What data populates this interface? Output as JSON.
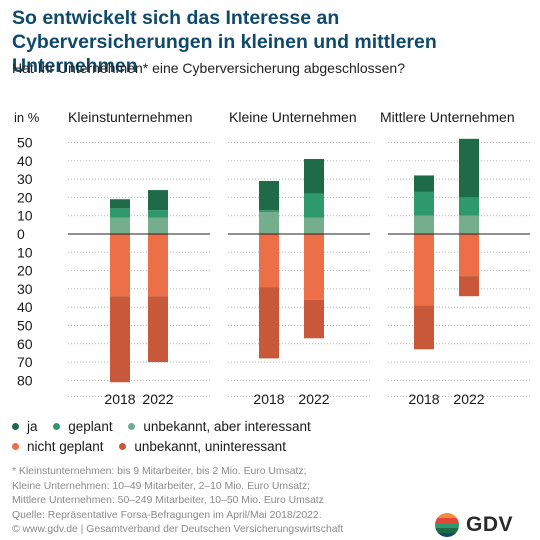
{
  "header": {
    "title": "So entwickelt sich das Interesse an Cyberversicherungen in kleinen und mittleren Unternehmen",
    "subtitle": "Hat Ihr Unternehmen* eine Cyberversicherung abgeschlossen?"
  },
  "chart_data": {
    "type": "bar",
    "stacked": "diverging",
    "unit_label": "in %",
    "y_ticks_above": [
      "50",
      "40",
      "30",
      "20",
      "10",
      "0"
    ],
    "y_ticks_below": [
      "10",
      "20",
      "30",
      "40",
      "50",
      "60",
      "70",
      "80"
    ],
    "ylim": [
      -80,
      50
    ],
    "grid": true,
    "legend_position": "bottom-left",
    "categories": [
      "2018",
      "2022"
    ],
    "colors": {
      "ja": "#1f6b47",
      "geplant": "#2e9a6c",
      "unbekannt_interessant": "#74ae8d",
      "nicht_geplant": "#ed6f48",
      "unbekannt_uninteressant": "#c9583a"
    },
    "groups": [
      {
        "name": "Kleinstunternehmen",
        "years": [
          {
            "year": "2018",
            "ja": 5,
            "geplant": 5,
            "unbekannt_interessant": 9,
            "nicht_geplant": 34,
            "unbekannt_uninteressant": 47
          },
          {
            "year": "2022",
            "ja": 11,
            "geplant": 4,
            "unbekannt_interessant": 9,
            "nicht_geplant": 34,
            "unbekannt_uninteressant": 36
          }
        ]
      },
      {
        "name": "Kleine Unternehmen",
        "years": [
          {
            "year": "2018",
            "ja": 16,
            "geplant": 1,
            "unbekannt_interessant": 12,
            "nicht_geplant": 29,
            "unbekannt_uninteressant": 39
          },
          {
            "year": "2022",
            "ja": 19,
            "geplant": 13,
            "unbekannt_interessant": 9,
            "nicht_geplant": 36,
            "unbekannt_uninteressant": 21
          }
        ]
      },
      {
        "name": "Mittlere Unternehmen",
        "years": [
          {
            "year": "2018",
            "ja": 9,
            "geplant": 13,
            "unbekannt_interessant": 10,
            "nicht_geplant": 39,
            "unbekannt_uninteressant": 24
          },
          {
            "year": "2022",
            "ja": 32,
            "geplant": 10,
            "unbekannt_interessant": 10,
            "nicht_geplant": 23,
            "unbekannt_uninteressant": 11
          }
        ]
      }
    ],
    "legend": [
      {
        "key": "ja",
        "label": "ja"
      },
      {
        "key": "geplant",
        "label": "geplant"
      },
      {
        "key": "unbekannt_interessant",
        "label": "unbekannt, aber interessant"
      },
      {
        "key": "nicht_geplant",
        "label": "nicht geplant"
      },
      {
        "key": "unbekannt_uninteressant",
        "label": "unbekannt, uninteressant"
      }
    ]
  },
  "footnotes": [
    "*  Kleinstunternehmen: bis 9 Mitarbeiter, bis 2 Mio. Euro Umsatz;",
    "Kleine Unternehmen: 10–49 Mitarbeiter, 2–10 Mio. Euro Umsatz;",
    "Mittlere Unternehmen: 50–249 Mitarbeiter, 10–50 Mio. Euro Umsatz",
    "Quelle: Repräsentative Forsa-Befragungen im April/Mai 2018/2022.",
    "© www.gdv.de  |  Gesamtverband der Deutschen Versicherungswirtschaft"
  ],
  "logo": {
    "text": "GDV",
    "icon": "gdv-logo-icon",
    "colors": [
      "#f28c38",
      "#e0483a",
      "#2e9a6c",
      "#1f6b47",
      "#0f4a6b"
    ]
  }
}
